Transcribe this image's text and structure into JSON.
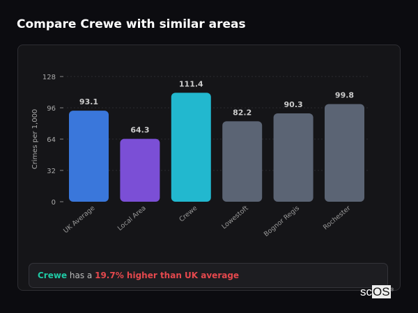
{
  "header": {
    "title": "Compare Crewe with similar areas"
  },
  "chart_data": {
    "type": "bar",
    "categories": [
      "UK Average",
      "Local Area",
      "Crewe",
      "Lowestoft",
      "Bognor Regis",
      "Rochester"
    ],
    "values": [
      93.1,
      64.3,
      111.4,
      82.2,
      90.3,
      99.8
    ],
    "data_labels": [
      "93.1",
      "64.3",
      "111.4",
      "82.2",
      "90.3",
      "99.8"
    ],
    "colors": [
      "#3a77db",
      "#7b4fd6",
      "#22b8cf",
      "#5b6474",
      "#5b6474",
      "#5b6474"
    ],
    "xlabel": "",
    "ylabel": "Crimes per 1,000",
    "ylim": [
      0,
      128
    ],
    "yticks": [
      0,
      32,
      64,
      96,
      128
    ],
    "grid": true
  },
  "summary": {
    "area": "Crewe",
    "middle": " has a ",
    "highlight": "19.7% higher than UK average"
  },
  "logo": {
    "text_a": "sc",
    "text_b": "OS",
    "mark": "®"
  }
}
